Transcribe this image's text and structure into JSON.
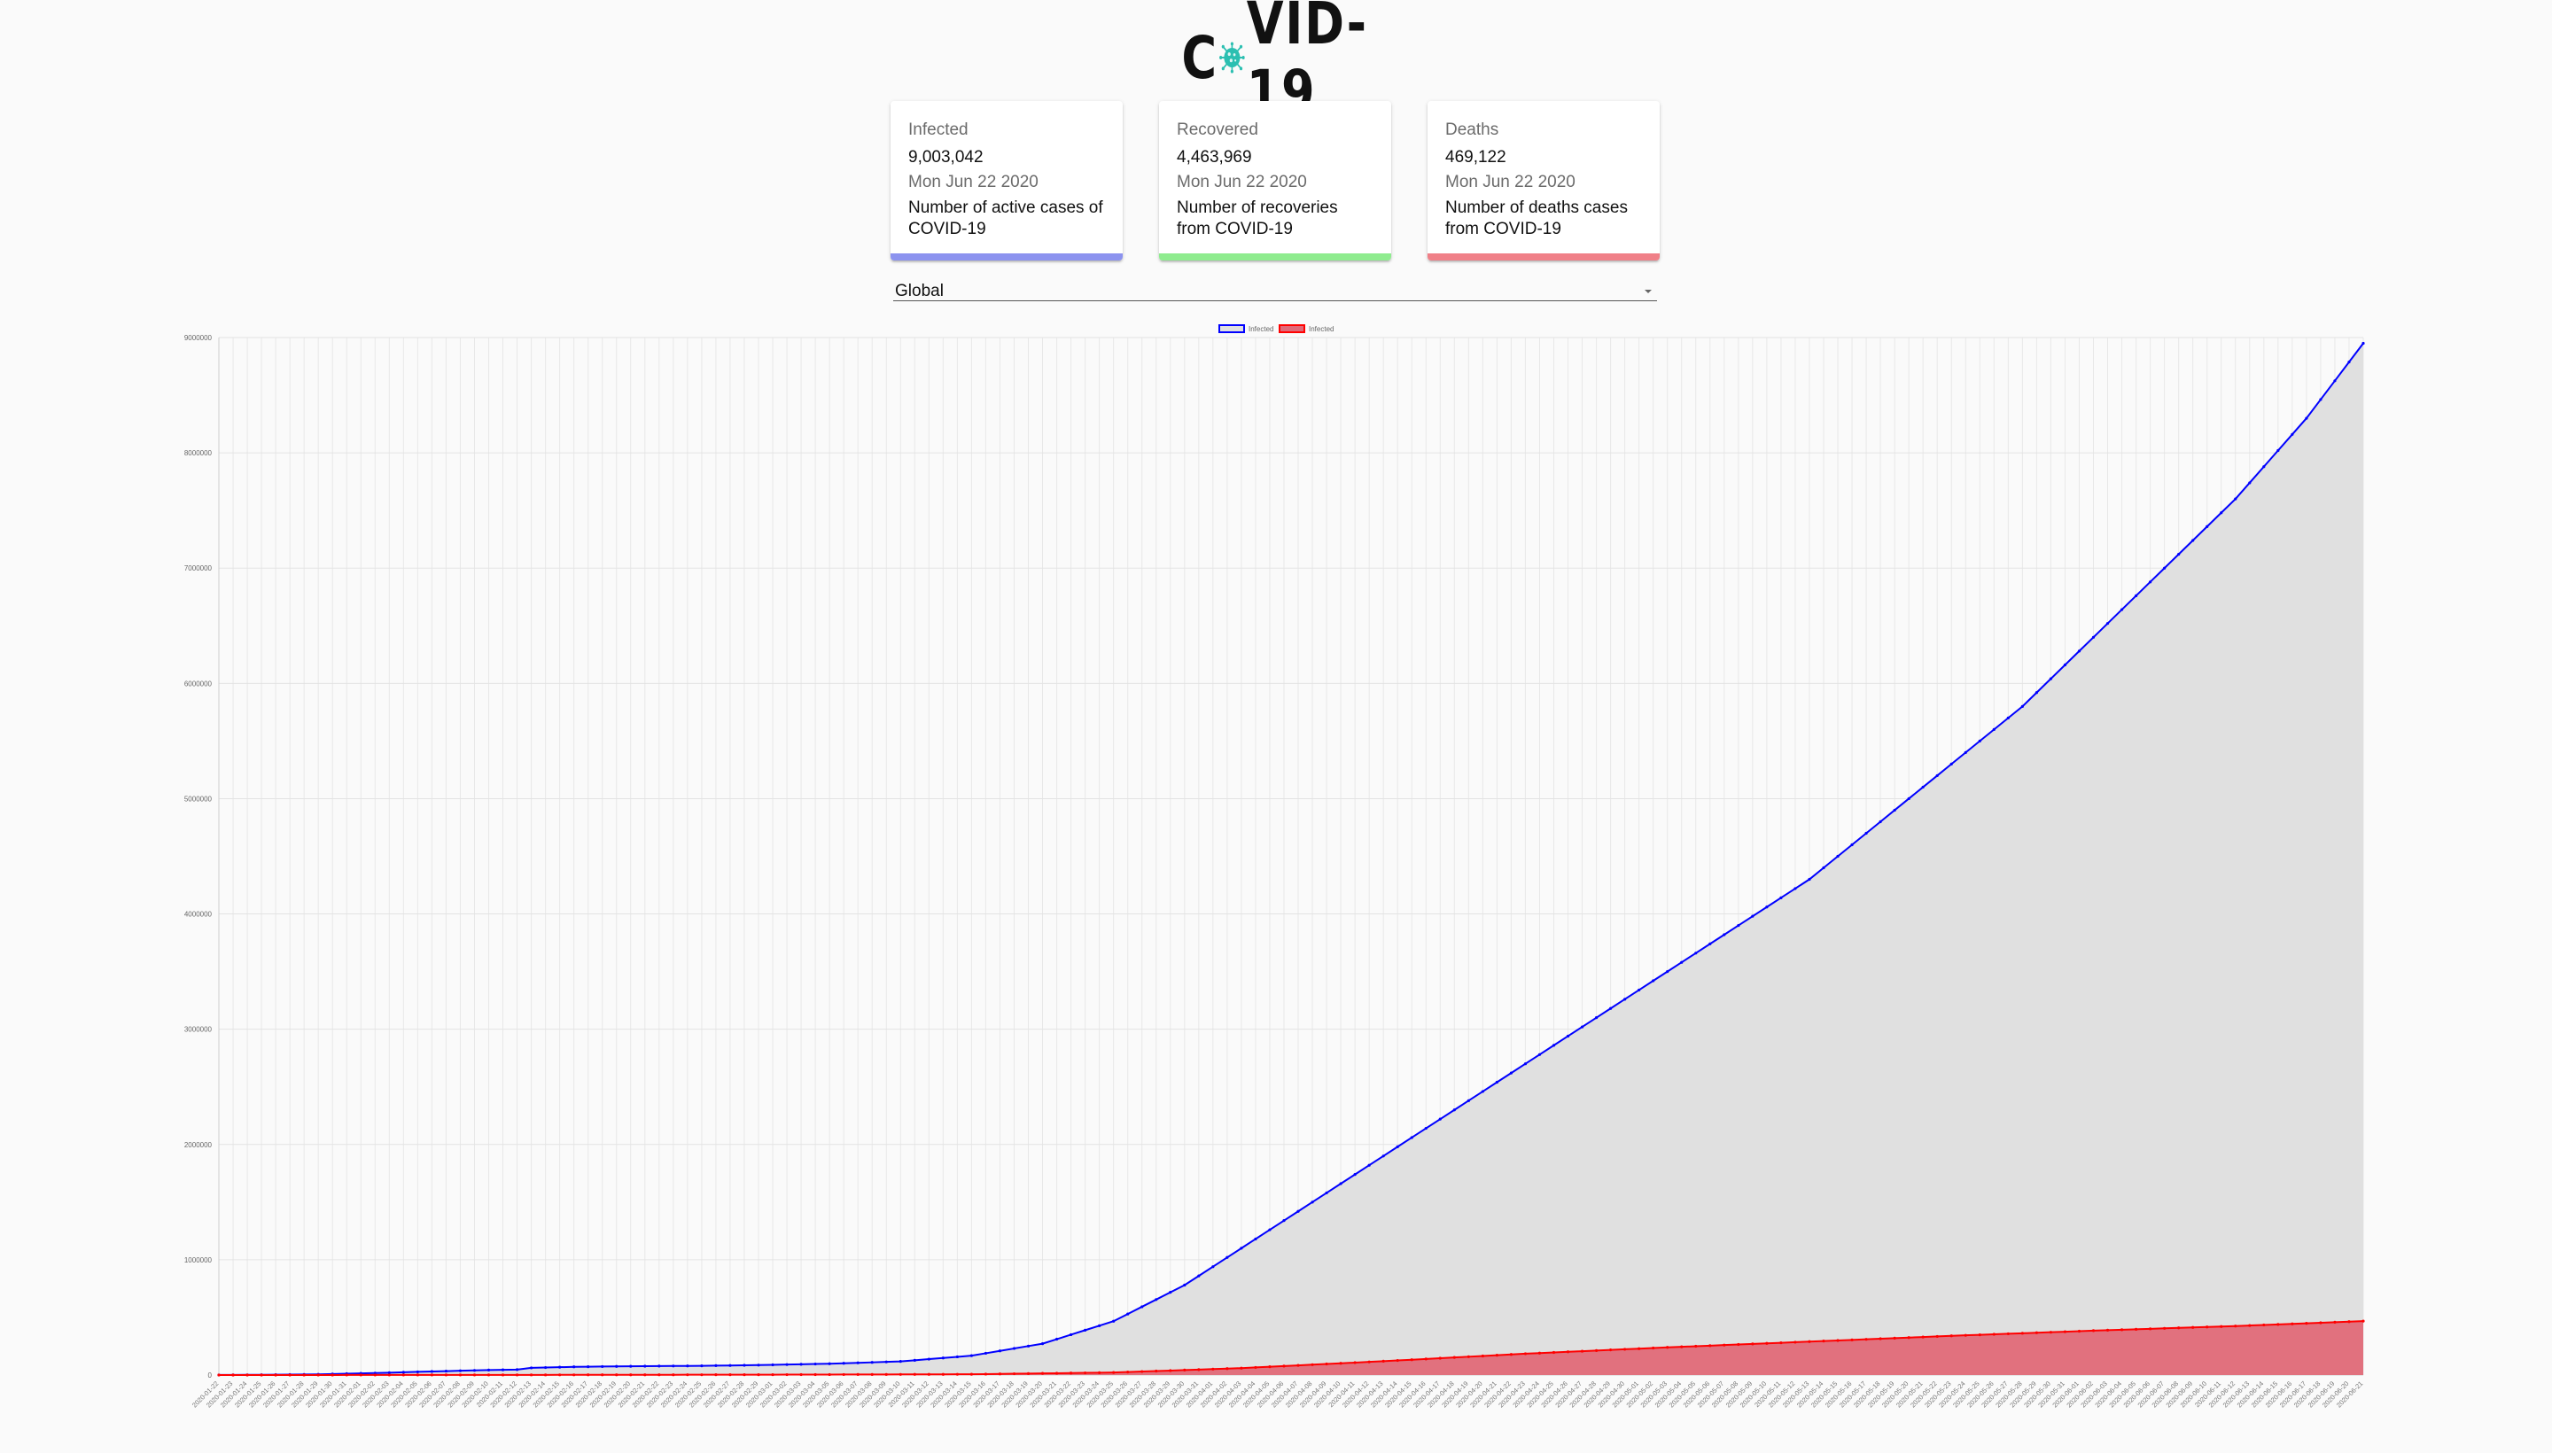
{
  "logo": {
    "prefix": "C",
    "suffix": "VID-19",
    "icon": "coronavirus-icon"
  },
  "colors": {
    "infected": "#0000ff",
    "recovered": "#00ff00",
    "deaths": "#ff0000",
    "infected_bar": "#8c93ef",
    "recovered_bar": "#8fec8f",
    "deaths_bar": "#f08088",
    "area_fill": "#e0e0e0",
    "deaths_fill": "#e06a78"
  },
  "cards": [
    {
      "title": "Infected",
      "value": "9,003,042",
      "date": "Mon Jun 22 2020",
      "desc": "Number of active cases of COVID-19"
    },
    {
      "title": "Recovered",
      "value": "4,463,969",
      "date": "Mon Jun 22 2020",
      "desc": "Number of recoveries from COVID-19"
    },
    {
      "title": "Deaths",
      "value": "469,122",
      "date": "Mon Jun 22 2020",
      "desc": "Number of deaths cases from COVID-19"
    }
  ],
  "country_select": {
    "value": "Global"
  },
  "chart_data": {
    "type": "line",
    "legend": [
      "Infected",
      "Infected"
    ],
    "legend_position": "top-center",
    "grid": true,
    "x_range": [
      "2020-01-22",
      "2020-06-21"
    ],
    "ylim": [
      0,
      9000000
    ],
    "y_ticks": [
      0,
      1000000,
      2000000,
      3000000,
      4000000,
      5000000,
      6000000,
      7000000,
      8000000,
      9000000
    ],
    "series": [
      {
        "name": "Infected",
        "color": "#0000ff",
        "fill": "#e0e0e0",
        "points": [
          [
            "2020-01-22",
            555
          ],
          [
            "2020-01-25",
            2000
          ],
          [
            "2020-01-29",
            6000
          ],
          [
            "2020-02-02",
            17000
          ],
          [
            "2020-02-06",
            31000
          ],
          [
            "2020-02-10",
            43000
          ],
          [
            "2020-02-12",
            47000
          ],
          [
            "2020-02-13",
            62000
          ],
          [
            "2020-02-16",
            71000
          ],
          [
            "2020-02-20",
            76000
          ],
          [
            "2020-02-25",
            80000
          ],
          [
            "2020-02-29",
            86000
          ],
          [
            "2020-03-05",
            98000
          ],
          [
            "2020-03-10",
            118000
          ],
          [
            "2020-03-15",
            168000
          ],
          [
            "2020-03-20",
            272000
          ],
          [
            "2020-03-25",
            467000
          ],
          [
            "2020-03-30",
            780000
          ],
          [
            "2020-04-03",
            1100000
          ],
          [
            "2020-04-08",
            1500000
          ],
          [
            "2020-04-13",
            1900000
          ],
          [
            "2020-04-18",
            2300000
          ],
          [
            "2020-04-23",
            2700000
          ],
          [
            "2020-04-28",
            3100000
          ],
          [
            "2020-05-03",
            3500000
          ],
          [
            "2020-05-08",
            3900000
          ],
          [
            "2020-05-13",
            4300000
          ],
          [
            "2020-05-18",
            4800000
          ],
          [
            "2020-05-23",
            5300000
          ],
          [
            "2020-05-28",
            5800000
          ],
          [
            "2020-06-02",
            6400000
          ],
          [
            "2020-06-07",
            7000000
          ],
          [
            "2020-06-12",
            7600000
          ],
          [
            "2020-06-17",
            8300000
          ],
          [
            "2020-06-21",
            8950000
          ]
        ]
      },
      {
        "name": "Infected",
        "color": "#ff0000",
        "fill": "#e06a78",
        "points": [
          [
            "2020-01-22",
            17
          ],
          [
            "2020-02-10",
            1000
          ],
          [
            "2020-02-29",
            3000
          ],
          [
            "2020-03-15",
            6500
          ],
          [
            "2020-03-25",
            22000
          ],
          [
            "2020-04-03",
            60000
          ],
          [
            "2020-04-13",
            120000
          ],
          [
            "2020-04-23",
            185000
          ],
          [
            "2020-05-03",
            240000
          ],
          [
            "2020-05-13",
            290000
          ],
          [
            "2020-05-23",
            340000
          ],
          [
            "2020-06-02",
            385000
          ],
          [
            "2020-06-12",
            425000
          ],
          [
            "2020-06-21",
            468000
          ]
        ]
      }
    ]
  }
}
